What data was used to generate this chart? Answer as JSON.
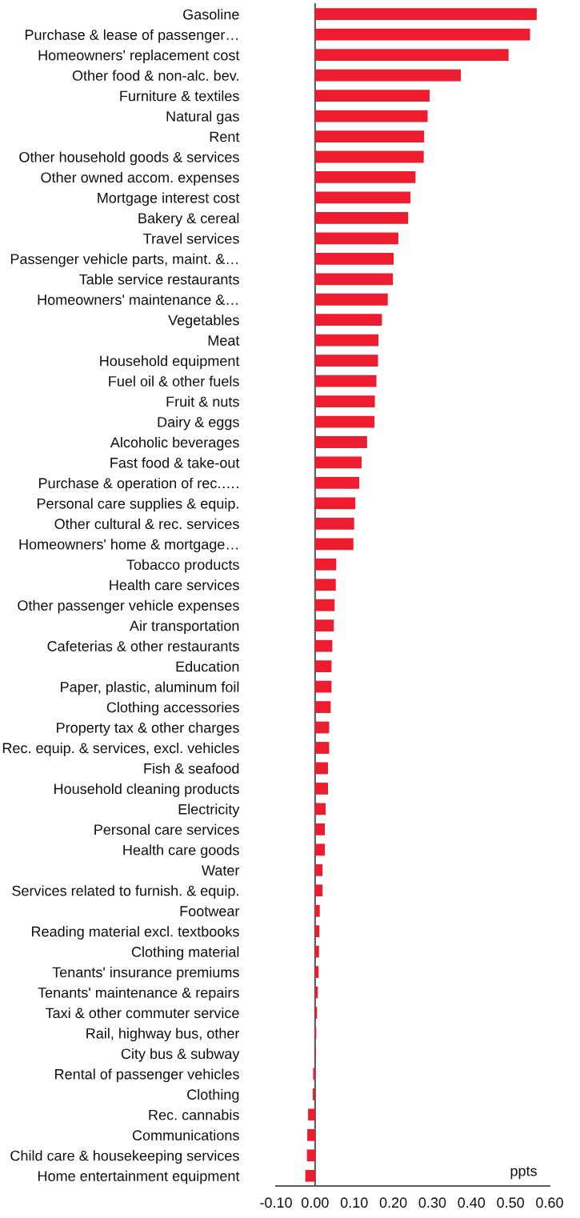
{
  "chart_data": {
    "type": "bar",
    "orientation": "horizontal",
    "xlabel": "ppts",
    "color": "#ed1c2e",
    "categories": [
      "Gasoline",
      "Purchase & lease of passenger…",
      "Homeowners' replacement cost",
      "Other food & non-alc. bev.",
      "Furniture & textiles",
      "Natural gas",
      "Rent",
      "Other household goods & services",
      "Other owned accom. expenses",
      "Mortgage interest cost",
      "Bakery & cereal",
      "Travel services",
      "Passenger vehicle parts, maint. &…",
      "Table service restaurants",
      "Homeowners' maintenance &…",
      "Vegetables",
      "Meat",
      "Household equipment",
      "Fuel oil & other fuels",
      "Fruit & nuts",
      "Dairy & eggs",
      "Alcoholic beverages",
      "Fast food & take-out",
      "Purchase & operation of rec.….",
      "Personal care supplies & equip.",
      "Other cultural & rec. services",
      "Homeowners' home & mortgage…",
      "Tobacco products",
      "Health care services",
      "Other passenger vehicle expenses",
      "Air transportation",
      "Cafeterias & other restaurants",
      "Education",
      "Paper, plastic, aluminum foil",
      "Clothing accessories",
      "Property tax & other charges",
      "Rec. equip. & services, excl. vehicles",
      "Fish & seafood",
      "Household cleaning products",
      "Electricity",
      "Personal care services",
      "Health care goods",
      "Water",
      "Services related to furnish. & equip.",
      "Footwear",
      "Reading material excl. textbooks",
      "Clothing material",
      "Tenants' insurance premiums",
      "Tenants' maintenance & repairs",
      "Taxi & other commuter service",
      "Rail, highway bus, other",
      "City bus & subway",
      "Rental of passenger vehicles",
      "Clothing",
      "Rec. cannabis",
      "Communications",
      "Child care & housekeeping services",
      "Home entertainment equipment"
    ],
    "values": [
      0.567,
      0.55,
      0.495,
      0.373,
      0.293,
      0.288,
      0.279,
      0.278,
      0.257,
      0.244,
      0.238,
      0.213,
      0.201,
      0.199,
      0.186,
      0.171,
      0.162,
      0.161,
      0.157,
      0.153,
      0.152,
      0.133,
      0.119,
      0.113,
      0.103,
      0.1,
      0.098,
      0.054,
      0.053,
      0.05,
      0.048,
      0.044,
      0.042,
      0.042,
      0.04,
      0.036,
      0.036,
      0.033,
      0.033,
      0.027,
      0.025,
      0.025,
      0.019,
      0.019,
      0.012,
      0.011,
      0.01,
      0.009,
      0.007,
      0.005,
      0.003,
      0.002,
      -0.005,
      -0.006,
      -0.018,
      -0.02,
      -0.021,
      -0.025
    ],
    "xlim": [
      -0.1,
      0.6
    ],
    "xticks": [
      {
        "value": -0.1,
        "label": "-0.10"
      },
      {
        "value": 0,
        "label": "0.00"
      },
      {
        "value": 0.1,
        "label": "0.10"
      },
      {
        "value": 0.2,
        "label": "0.20"
      },
      {
        "value": 0.3,
        "label": "0.30"
      },
      {
        "value": 0.4,
        "label": "0.40"
      },
      {
        "value": 0.5,
        "label": "0.50"
      },
      {
        "value": 0.6,
        "label": "0.60"
      }
    ]
  }
}
